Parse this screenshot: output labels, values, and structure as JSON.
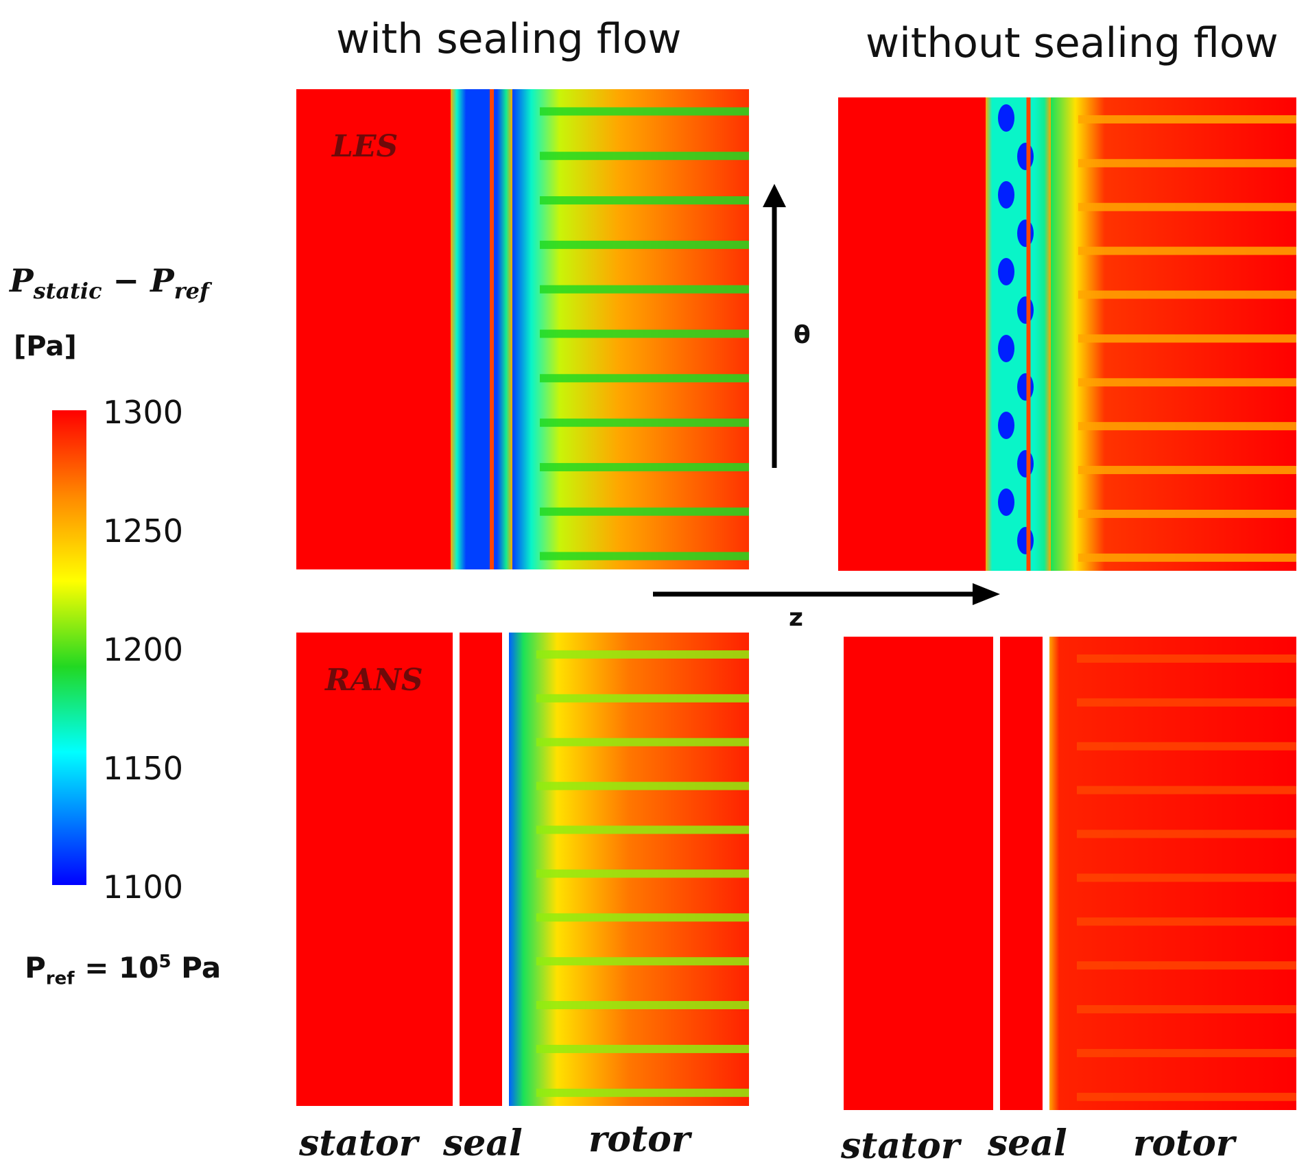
{
  "column_titles": [
    "with sealing flow",
    "without sealing flow"
  ],
  "method_labels": [
    "LES",
    "RANS"
  ],
  "axes": {
    "theta_label": "θ",
    "z_label": "z"
  },
  "region_labels": {
    "left": [
      "stator",
      "seal",
      "rotor"
    ],
    "right": [
      "stator",
      "seal",
      "rotor"
    ]
  },
  "colorbar": {
    "title_main": "P",
    "title_sub1": "static",
    "title_minus": " − P",
    "title_sub2": "ref",
    "unit": "[Pa]",
    "ticks": [
      "1300",
      "1250",
      "1200",
      "1150",
      "1100"
    ],
    "colors": [
      "#ff0000",
      "#ff8800",
      "#ffff00",
      "#22d822",
      "#00ffff",
      "#0000ff"
    ]
  },
  "reference": {
    "prefix": "P",
    "sub": "ref",
    "mid": " = 10",
    "sup": "5",
    "suffix": " Pa"
  },
  "chart_data": [
    {
      "type": "heatmap",
      "title": "with sealing flow",
      "method": "LES",
      "zmin": 1100,
      "zmax": 1300,
      "units": "Pa",
      "regions": [
        "stator",
        "seal",
        "rotor"
      ],
      "pattern": {
        "stator": 1300,
        "seal_min": 1100,
        "rotor_inlet": 1200,
        "rotor_outlet": 1290,
        "streaks": 10
      }
    },
    {
      "type": "heatmap",
      "title": "without sealing flow",
      "method": "LES",
      "zmin": 1100,
      "zmax": 1300,
      "units": "Pa",
      "regions": [
        "stator",
        "seal",
        "rotor"
      ],
      "pattern": {
        "stator": 1300,
        "seal_min": 1100,
        "rotor_inlet": 1240,
        "rotor_outlet": 1300,
        "streaks": 10
      }
    },
    {
      "type": "heatmap",
      "title": "with sealing flow",
      "method": "RANS",
      "zmin": 1100,
      "zmax": 1300,
      "units": "Pa",
      "regions": [
        "stator",
        "seal",
        "rotor"
      ],
      "pattern": {
        "stator": 1300,
        "seal": 1300,
        "rotor_inlet": 1150,
        "rotor_outlet": 1290,
        "streaks": 10
      }
    },
    {
      "type": "heatmap",
      "title": "without sealing flow",
      "method": "RANS",
      "zmin": 1100,
      "zmax": 1300,
      "units": "Pa",
      "regions": [
        "stator",
        "seal",
        "rotor"
      ],
      "pattern": {
        "stator": 1300,
        "seal": 1300,
        "rotor_inlet": 1280,
        "rotor_outlet": 1300,
        "streaks": 10
      }
    }
  ]
}
